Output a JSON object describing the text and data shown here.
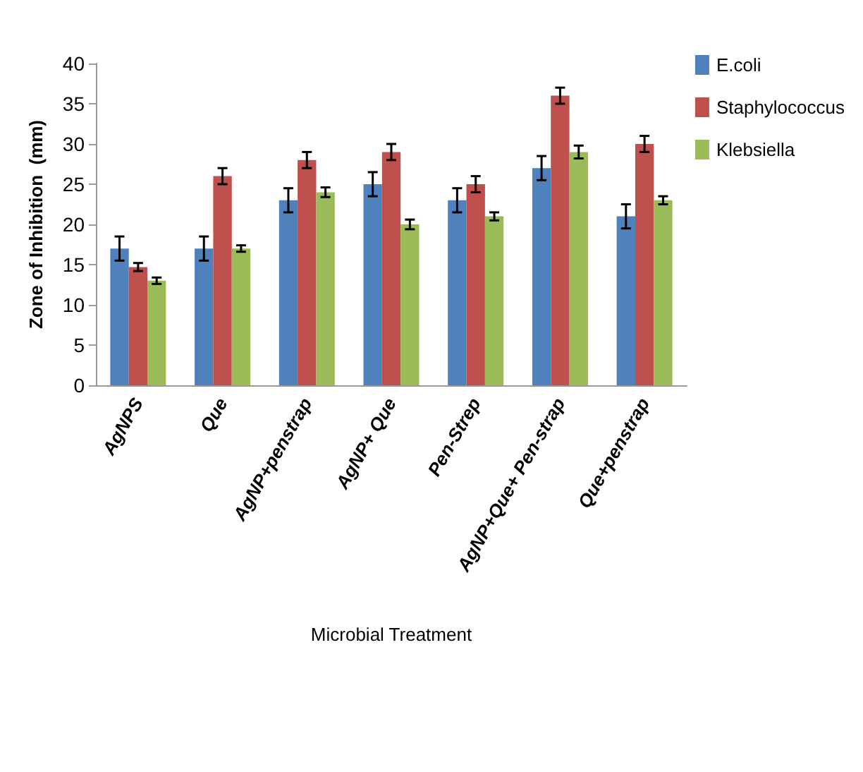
{
  "chart_data": {
    "type": "bar",
    "xlabel": "Microbial Treatment",
    "ylabel": "Zone of Inhibition  (mm)",
    "categories": [
      "AgNPS",
      "Que",
      "AgNP+penstrap",
      "AgNP+ Que",
      "Pen-Strep",
      "AgNP+Que+ Pen-strap",
      "Que+penstrap"
    ],
    "series": [
      {
        "name": "E.coli",
        "color": "#4f81bd",
        "values": [
          17,
          17,
          23,
          25,
          23,
          27,
          21
        ],
        "errors": [
          1.5,
          1.5,
          1.5,
          1.5,
          1.5,
          1.5,
          1.5
        ]
      },
      {
        "name": "Staphylococcus",
        "color": "#c0504d",
        "values": [
          14.7,
          26,
          28,
          29,
          25,
          36,
          30
        ],
        "errors": [
          0.5,
          1,
          1,
          1,
          1,
          1,
          1
        ]
      },
      {
        "name": "Klebsiella",
        "color": "#9bbb59",
        "values": [
          13,
          17,
          24,
          20,
          21,
          29,
          23
        ],
        "errors": [
          0.4,
          0.4,
          0.6,
          0.6,
          0.5,
          0.8,
          0.5
        ]
      }
    ],
    "ylim": [
      0,
      40
    ],
    "yticks": [
      0,
      5,
      10,
      15,
      20,
      25,
      30,
      35,
      40
    ],
    "grid": false,
    "legend": "top right"
  }
}
